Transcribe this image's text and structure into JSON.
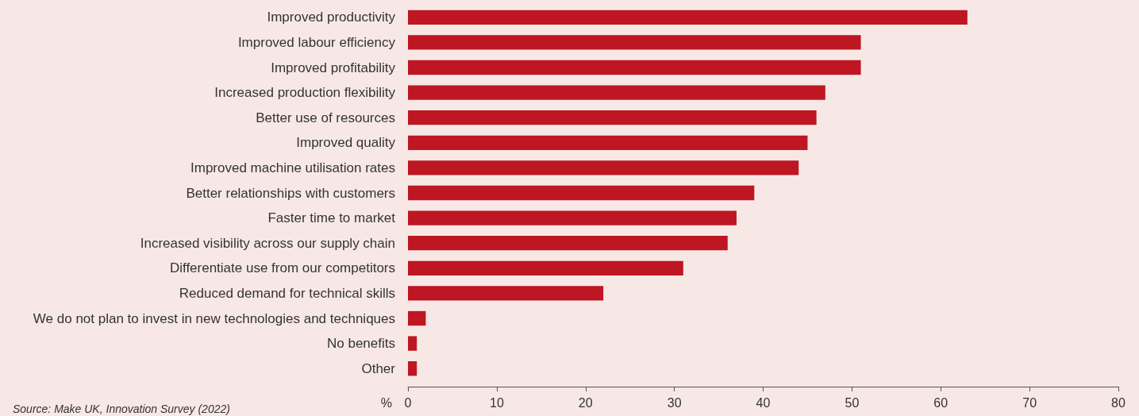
{
  "chart_data": {
    "type": "bar",
    "orientation": "horizontal",
    "xlabel": "%",
    "categories": [
      "Improved productivity",
      "Improved labour efficiency",
      "Improved profitability",
      "Increased production flexibility",
      "Better use of resources",
      "Improved quality",
      "Improved machine utilisation rates",
      "Better relationships with customers",
      "Faster time to market",
      "Increased visibility across our supply chain",
      "Differentiate use from our competitors",
      "Reduced demand for technical skills",
      "We do not plan to invest in new technologies and techniques",
      "No benefits",
      "Other"
    ],
    "values": [
      63,
      51,
      51,
      47,
      46,
      45,
      44,
      39,
      37,
      36,
      31,
      22,
      2,
      1,
      1
    ],
    "color": "#be1622",
    "xlim": [
      0,
      80
    ],
    "xticks": [
      0,
      10,
      20,
      30,
      40,
      50,
      60,
      70,
      80
    ],
    "annotations": [
      "Source: Make UK, Innovation Survey (2022)"
    ]
  }
}
